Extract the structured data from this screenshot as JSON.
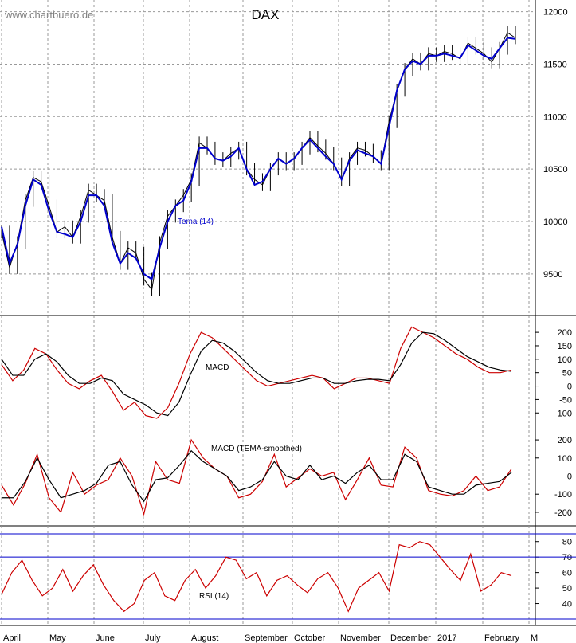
{
  "watermark": "www.chartbuero.de",
  "chart_data": [
    {
      "type": "candlestick-line",
      "title": "DAX",
      "ylim": [
        9150,
        12050
      ],
      "y_ticks": [
        9500,
        10000,
        10500,
        11000,
        11500,
        12000
      ],
      "grid": true,
      "indicator_label": "Tema (14)",
      "series_colors": {
        "price": "#000000",
        "tema": "#0000cc"
      },
      "x": [
        0,
        10,
        20,
        30,
        40,
        50,
        60,
        70,
        80,
        90,
        100,
        110,
        120,
        130,
        140,
        150,
        160,
        170,
        180,
        190,
        200,
        210,
        220,
        230,
        240,
        250,
        260,
        270,
        280,
        290,
        300,
        310,
        320,
        330,
        340,
        350,
        360,
        370,
        380,
        390,
        400,
        410,
        420,
        430,
        440,
        450,
        460,
        470,
        480,
        490,
        500,
        510,
        520,
        530,
        540,
        550,
        560,
        570,
        580,
        590,
        600,
        610,
        620,
        630,
        640,
        650
      ],
      "price": [
        9900,
        9560,
        9800,
        10200,
        10420,
        10380,
        10150,
        9900,
        9950,
        9850,
        10050,
        10300,
        10250,
        10200,
        9850,
        9600,
        9750,
        9700,
        9450,
        9350,
        9800,
        10050,
        10150,
        10250,
        10400,
        10750,
        10700,
        10600,
        10580,
        10650,
        10700,
        10500,
        10400,
        10350,
        10500,
        10600,
        10550,
        10600,
        10700,
        10800,
        10720,
        10650,
        10550,
        10400,
        10600,
        10700,
        10680,
        10620,
        10550,
        10950,
        11250,
        11450,
        11550,
        11500,
        11600,
        11580,
        11620,
        11600,
        11550,
        11700,
        11650,
        11600,
        11520,
        11650,
        11800,
        11750
      ],
      "tema": [
        9950,
        9600,
        9780,
        10150,
        10400,
        10350,
        10100,
        9900,
        9880,
        9850,
        10000,
        10250,
        10250,
        10150,
        9800,
        9600,
        9700,
        9650,
        9500,
        9450,
        9750,
        10000,
        10150,
        10200,
        10380,
        10700,
        10700,
        10600,
        10580,
        10620,
        10700,
        10500,
        10350,
        10380,
        10500,
        10600,
        10550,
        10600,
        10700,
        10780,
        10700,
        10620,
        10550,
        10400,
        10580,
        10680,
        10650,
        10620,
        10550,
        10900,
        11250,
        11450,
        11530,
        11500,
        11580,
        11580,
        11600,
        11580,
        11560,
        11680,
        11630,
        11580,
        11550,
        11650,
        11750,
        11740
      ]
    },
    {
      "type": "line",
      "indicator_label": "MACD",
      "ylim": [
        -120,
        230
      ],
      "y_ticks": [
        -100,
        -50,
        0,
        50,
        100,
        150,
        200
      ],
      "series": [
        {
          "color": "#cc0000",
          "values": [
            80,
            20,
            60,
            140,
            120,
            60,
            10,
            -10,
            20,
            40,
            -20,
            -90,
            -60,
            -110,
            -120,
            -80,
            10,
            120,
            200,
            180,
            140,
            100,
            60,
            20,
            0,
            10,
            20,
            30,
            40,
            30,
            -10,
            10,
            30,
            30,
            20,
            10,
            140,
            220,
            200,
            180,
            150,
            120,
            100,
            70,
            50,
            50,
            60
          ]
        },
        {
          "color": "#000000",
          "values": [
            100,
            40,
            40,
            100,
            120,
            90,
            40,
            10,
            10,
            30,
            20,
            -30,
            -50,
            -70,
            -100,
            -110,
            -60,
            40,
            130,
            170,
            160,
            130,
            90,
            50,
            20,
            10,
            10,
            20,
            30,
            30,
            10,
            10,
            20,
            25,
            25,
            20,
            80,
            160,
            200,
            195,
            170,
            140,
            110,
            90,
            70,
            60,
            55
          ]
        }
      ],
      "x": [
        0,
        15,
        30,
        45,
        60,
        75,
        90,
        105,
        120,
        135,
        150,
        165,
        180,
        195,
        210,
        225,
        240,
        255,
        270,
        285,
        300,
        315,
        330,
        345,
        360,
        375,
        390,
        405,
        420,
        435,
        450,
        465,
        480,
        495,
        510,
        525,
        540,
        555,
        570,
        585,
        600,
        615,
        630,
        645,
        660,
        675,
        690
      ]
    },
    {
      "type": "line",
      "indicator_label": "MACD (TEMA-smoothed)",
      "ylim": [
        -240,
        240
      ],
      "y_ticks": [
        -200,
        -100,
        0,
        100,
        200
      ],
      "series": [
        {
          "color": "#cc0000",
          "values": [
            -50,
            -160,
            -40,
            120,
            -120,
            -200,
            20,
            -100,
            -50,
            -20,
            100,
            0,
            -210,
            80,
            -20,
            -40,
            200,
            100,
            40,
            0,
            -120,
            -100,
            -30,
            120,
            -60,
            -10,
            40,
            0,
            20,
            -130,
            -20,
            100,
            -50,
            -60,
            160,
            100,
            -80,
            -100,
            -110,
            -80,
            0,
            -80,
            -60,
            40
          ]
        },
        {
          "color": "#000000",
          "values": [
            -120,
            -120,
            -30,
            100,
            -20,
            -120,
            -100,
            -80,
            -40,
            60,
            80,
            -50,
            -140,
            -20,
            -10,
            60,
            140,
            80,
            40,
            0,
            -80,
            -60,
            -20,
            80,
            0,
            -20,
            60,
            -20,
            0,
            -40,
            20,
            60,
            -20,
            -20,
            120,
            80,
            -60,
            -80,
            -100,
            -100,
            -50,
            -40,
            -30,
            20
          ]
        }
      ],
      "x": [
        0,
        15,
        30,
        45,
        60,
        75,
        90,
        105,
        120,
        135,
        150,
        165,
        180,
        195,
        210,
        225,
        240,
        255,
        270,
        285,
        300,
        315,
        330,
        345,
        360,
        375,
        390,
        405,
        420,
        435,
        450,
        465,
        480,
        495,
        510,
        525,
        540,
        555,
        570,
        585,
        600,
        615,
        630,
        645
      ]
    },
    {
      "type": "line",
      "indicator_label": "RSI (14)",
      "ylim": [
        30,
        85
      ],
      "y_ticks": [
        40,
        50,
        60,
        70,
        80
      ],
      "levels": [
        30,
        70,
        85
      ],
      "series": [
        {
          "color": "#cc0000",
          "values": [
            46,
            60,
            68,
            55,
            45,
            50,
            62,
            48,
            58,
            65,
            52,
            42,
            35,
            40,
            55,
            60,
            45,
            42,
            55,
            62,
            50,
            58,
            70,
            68,
            56,
            60,
            45,
            55,
            58,
            52,
            47,
            56,
            60,
            50,
            35,
            50,
            55,
            60,
            48,
            78,
            76,
            80,
            78,
            70,
            62,
            55,
            72,
            48,
            52,
            60,
            58
          ]
        }
      ],
      "x": [
        0,
        13,
        26,
        39,
        52,
        65,
        78,
        91,
        104,
        117,
        130,
        143,
        156,
        169,
        182,
        195,
        208,
        221,
        234,
        247,
        260,
        273,
        286,
        299,
        312,
        325,
        338,
        351,
        364,
        377,
        390,
        403,
        416,
        429,
        442,
        455,
        468,
        481,
        494,
        507,
        520,
        533,
        546,
        559,
        572,
        585,
        598,
        611,
        624,
        637,
        650
      ]
    }
  ],
  "x_axis": {
    "months": [
      "April",
      "May",
      "June",
      "July",
      "August",
      "September",
      "October",
      "November",
      "December",
      "2017",
      "February",
      "M"
    ]
  }
}
